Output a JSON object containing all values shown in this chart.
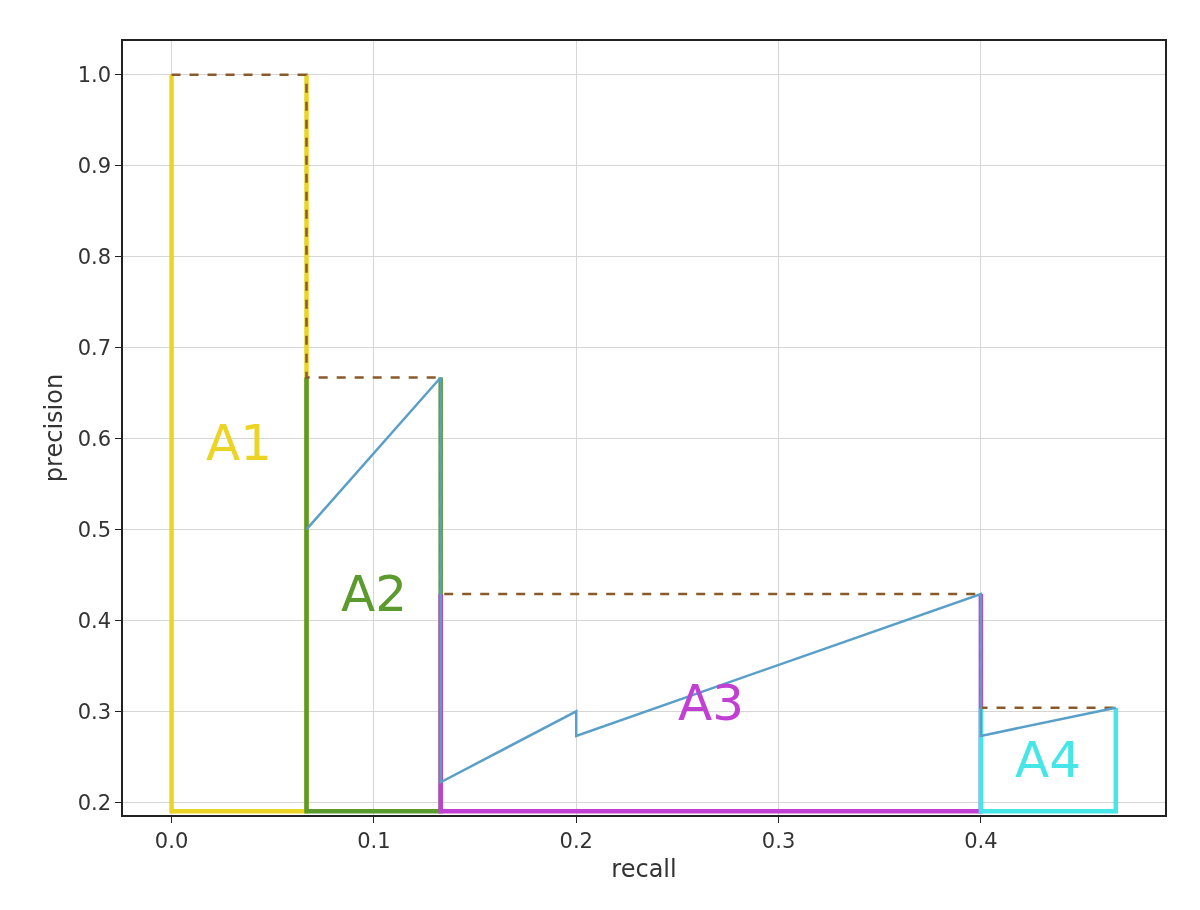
{
  "chart_data": {
    "type": "line",
    "xlabel": "recall",
    "ylabel": "precision",
    "series": [
      {
        "name": "A1",
        "color": "#ecd424",
        "x": [
          0,
          0,
          0.0667,
          0.0667
        ],
        "values": [
          1.0,
          0.19,
          0.19,
          1.0
        ]
      },
      {
        "name": "A2",
        "color": "#5b9a2c",
        "x": [
          0.0667,
          0.0667,
          0.133,
          0.133
        ],
        "values": [
          0.667,
          0.19,
          0.19,
          0.667
        ]
      },
      {
        "name": "A3",
        "color": "#c23fd4",
        "x": [
          0.133,
          0.133,
          0.4,
          0.4
        ],
        "values": [
          0.429,
          0.19,
          0.19,
          0.429
        ]
      },
      {
        "name": "A4",
        "color": "#46e6e6",
        "x": [
          0.4,
          0.4,
          0.4667,
          0.4667
        ],
        "values": [
          0.304,
          0.19,
          0.19,
          0.304
        ]
      },
      {
        "color": "#8a5a2a",
        "line_style": "dashed",
        "x": [
          0,
          0.0667,
          0.0667,
          0.133,
          0.133,
          0.4,
          0.4,
          0.4667
        ],
        "values": [
          1.0,
          1.0,
          0.667,
          0.667,
          0.429,
          0.429,
          0.304,
          0.304
        ]
      },
      {
        "color": "#5a9fc8",
        "x": [
          0.0667,
          0.133,
          0.133,
          0.2,
          0.2,
          0.4,
          0.4,
          0.4667
        ],
        "values": [
          0.5,
          0.667,
          0.222,
          0.3,
          0.273,
          0.429,
          0.273,
          0.304
        ]
      }
    ],
    "xlim": [
      -0.024,
      0.491
    ],
    "xticks": [
      {
        "value": 0,
        "label": "0.0"
      },
      0.1,
      0.2,
      0.3,
      0.4
    ],
    "ylim": [
      0.186,
      1.037
    ],
    "yticks": [
      0.2,
      0.3,
      0.4,
      0.5,
      0.6,
      0.7,
      0.8,
      0.9,
      {
        "value": 1,
        "label": "1.0"
      }
    ],
    "grid": true,
    "legend": false,
    "marker": "none",
    "line_style": "solid"
  }
}
